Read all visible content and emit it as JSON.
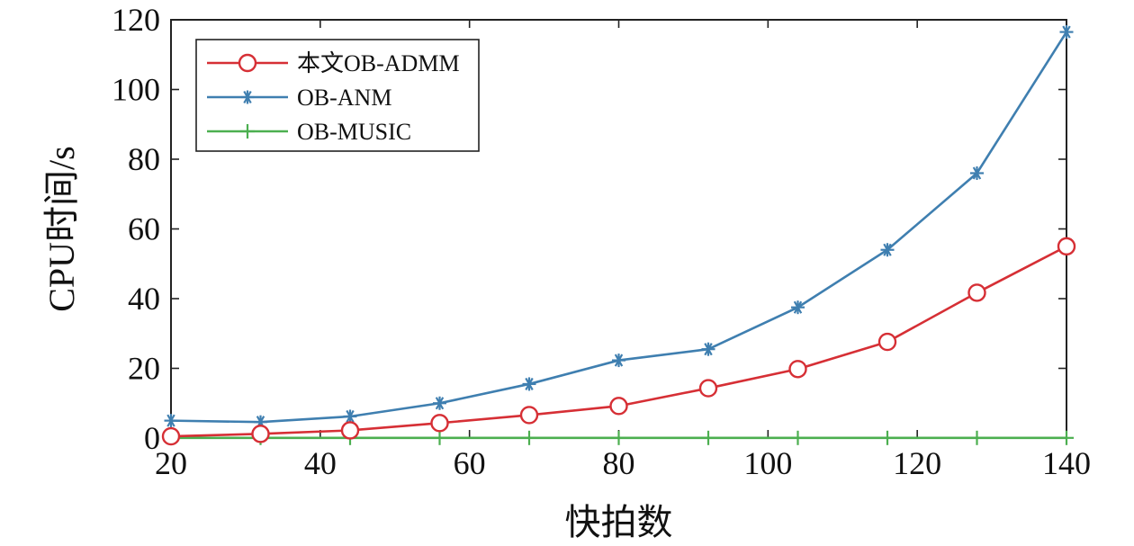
{
  "chart_data": {
    "type": "line",
    "title": "",
    "xlabel": "快拍数",
    "ylabel": "CPU时间/s",
    "xlim": [
      20,
      140
    ],
    "ylim": [
      0,
      120
    ],
    "x_ticks": [
      20,
      40,
      60,
      80,
      100,
      120,
      140
    ],
    "y_ticks": [
      0,
      20,
      40,
      60,
      80,
      100,
      120
    ],
    "grid": false,
    "legend_position": "top-left",
    "x": [
      20,
      32,
      44,
      56,
      68,
      80,
      92,
      104,
      116,
      128,
      140
    ],
    "series": [
      {
        "name": "本文OB-ADMM",
        "color": "#d62f35",
        "marker": "circle",
        "values": [
          0.5,
          1.2,
          2.2,
          4.3,
          6.6,
          9.2,
          14.3,
          19.8,
          27.6,
          41.7,
          55.0
        ]
      },
      {
        "name": "OB-ANM",
        "color": "#3f7fb0",
        "marker": "asterisk",
        "values": [
          5.0,
          4.6,
          6.2,
          10.0,
          15.5,
          22.3,
          25.5,
          37.5,
          54.0,
          76.0,
          116.5
        ]
      },
      {
        "name": "OB-MUSIC",
        "color": "#4caf50",
        "marker": "plus",
        "values": [
          0.05,
          0.05,
          0.05,
          0.05,
          0.05,
          0.05,
          0.05,
          0.05,
          0.05,
          0.05,
          0.05
        ]
      }
    ]
  }
}
